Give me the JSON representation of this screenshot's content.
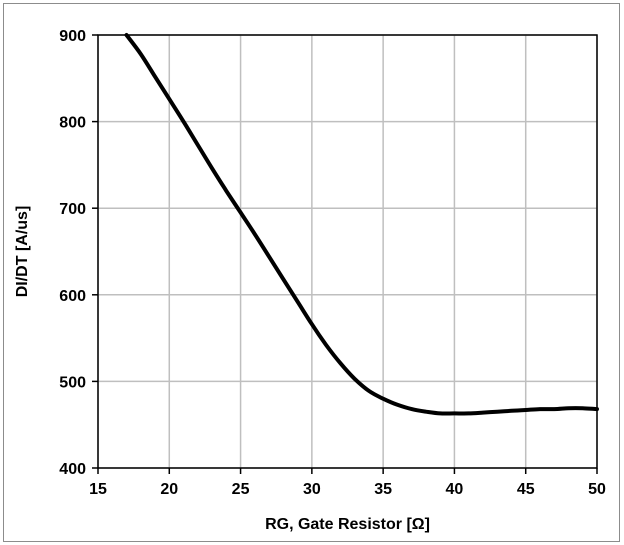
{
  "chart_data": {
    "type": "line",
    "title": "",
    "xlabel": "RG, Gate Resistor [Ω]",
    "ylabel": "DI/DT [A/us]",
    "xlim": [
      15,
      50
    ],
    "ylim": [
      400,
      900
    ],
    "xticks": [
      15,
      20,
      25,
      30,
      35,
      40,
      45,
      50
    ],
    "yticks": [
      400,
      500,
      600,
      700,
      800,
      900
    ],
    "grid": true,
    "legend": "none",
    "line_color": "#000000",
    "series": [
      {
        "x": [
          17,
          18,
          19,
          20,
          21,
          22,
          23,
          24,
          25,
          26,
          27,
          28,
          29,
          30,
          31,
          32,
          33,
          34,
          35,
          36,
          37,
          38,
          39,
          40,
          41,
          42,
          43,
          44,
          45,
          46,
          47,
          48,
          49,
          50
        ],
        "y": [
          900,
          878,
          852,
          826,
          800,
          773,
          746,
          720,
          695,
          670,
          644,
          618,
          592,
          566,
          542,
          521,
          503,
          489,
          480,
          473,
          468,
          465,
          463,
          463,
          463,
          464,
          465,
          466,
          467,
          468,
          468,
          469,
          469,
          468
        ]
      }
    ]
  }
}
